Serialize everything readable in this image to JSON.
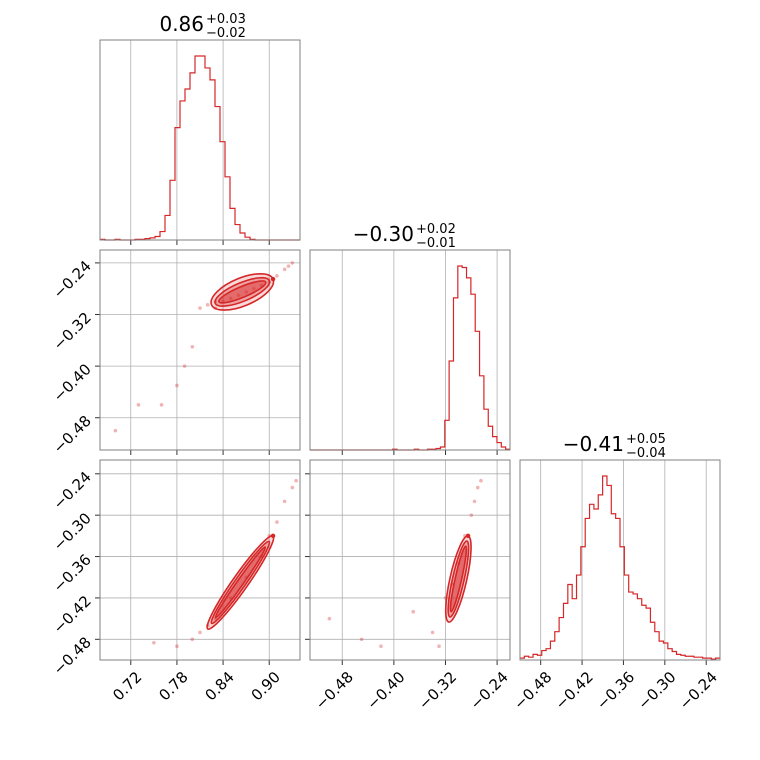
{
  "chart_data": {
    "type": "corner",
    "color": "#d62728",
    "parameters": [
      {
        "title": "0.86",
        "err_plus": "+0.03",
        "err_minus": "−0.02",
        "range": [
          0.68,
          0.94
        ],
        "ticks": [
          0.72,
          0.78,
          0.84,
          0.9
        ],
        "tick_labels": [
          "0.72",
          "0.78",
          "0.84",
          "0.90"
        ]
      },
      {
        "title": "−0.30",
        "err_plus": "+0.02",
        "err_minus": "−0.01",
        "range": [
          -0.53,
          -0.22
        ],
        "ticks": [
          -0.48,
          -0.4,
          -0.32,
          -0.24
        ],
        "tick_labels": [
          "−0.48",
          "−0.40",
          "−0.32",
          "−0.24"
        ]
      },
      {
        "title": "−0.41",
        "err_plus": "+0.05",
        "err_minus": "−0.04",
        "range": [
          -0.51,
          -0.22
        ],
        "ticks": [
          -0.48,
          -0.42,
          -0.36,
          -0.3,
          -0.24
        ],
        "tick_labels": [
          "−0.48",
          "−0.42",
          "−0.36",
          "−0.30",
          "−0.24"
        ]
      }
    ],
    "histograms": [
      {
        "param": 0,
        "bins_edges": [
          0.68,
          0.94
        ],
        "counts": [
          1,
          0,
          0,
          1,
          0,
          0,
          0,
          1,
          1,
          2,
          3,
          5,
          12,
          35,
          85,
          160,
          198,
          215,
          238,
          262,
          262,
          245,
          228,
          190,
          140,
          90,
          45,
          22,
          10,
          4,
          1,
          0,
          0,
          0,
          0,
          0,
          0,
          0,
          0,
          0
        ]
      },
      {
        "param": 1,
        "bins_edges": [
          -0.53,
          -0.22
        ],
        "counts": [
          0,
          0,
          0,
          0,
          0,
          0,
          0,
          0,
          0,
          0,
          0,
          0,
          0,
          0,
          0,
          0,
          0,
          0,
          0,
          1,
          0,
          0,
          0,
          0,
          1,
          0,
          0,
          1,
          1,
          2,
          4,
          40,
          120,
          205,
          248,
          246,
          232,
          210,
          160,
          100,
          55,
          32,
          18,
          10,
          4,
          1
        ]
      },
      {
        "param": 2,
        "bins_edges": [
          -0.51,
          -0.22
        ],
        "counts": [
          2,
          4,
          3,
          6,
          5,
          10,
          12,
          20,
          30,
          45,
          60,
          80,
          65,
          90,
          120,
          150,
          165,
          160,
          175,
          195,
          185,
          155,
          150,
          120,
          90,
          72,
          70,
          65,
          58,
          55,
          40,
          30,
          20,
          18,
          12,
          9,
          6,
          5,
          4,
          4,
          3,
          3,
          2,
          2,
          1,
          2
        ]
      }
    ],
    "pairs": [
      {
        "x_param": 0,
        "y_param": 1,
        "samples": [
          [
            0.7,
            -0.5
          ],
          [
            0.73,
            -0.46
          ],
          [
            0.76,
            -0.46
          ],
          [
            0.78,
            -0.43
          ],
          [
            0.79,
            -0.4
          ],
          [
            0.8,
            -0.37
          ],
          [
            0.81,
            -0.31
          ],
          [
            0.82,
            -0.305
          ],
          [
            0.83,
            -0.31
          ],
          [
            0.83,
            -0.3
          ],
          [
            0.84,
            -0.3
          ],
          [
            0.85,
            -0.295
          ],
          [
            0.86,
            -0.29
          ],
          [
            0.87,
            -0.285
          ],
          [
            0.88,
            -0.28
          ],
          [
            0.89,
            -0.275
          ],
          [
            0.9,
            -0.27
          ],
          [
            0.91,
            -0.26
          ],
          [
            0.92,
            -0.25
          ],
          [
            0.925,
            -0.245
          ],
          [
            0.93,
            -0.24
          ]
        ],
        "contour_axis": {
          "start": [
            0.825,
            -0.305
          ],
          "end": [
            0.905,
            -0.265
          ],
          "widths": [
            0.007,
            0.012,
            0.018
          ]
        }
      },
      {
        "x_param": 0,
        "y_param": 2,
        "samples": [
          [
            0.75,
            -0.485
          ],
          [
            0.78,
            -0.49
          ],
          [
            0.8,
            -0.48
          ],
          [
            0.81,
            -0.47
          ],
          [
            0.82,
            -0.46
          ],
          [
            0.83,
            -0.45
          ],
          [
            0.85,
            -0.42
          ],
          [
            0.87,
            -0.39
          ],
          [
            0.89,
            -0.36
          ],
          [
            0.9,
            -0.33
          ],
          [
            0.91,
            -0.31
          ],
          [
            0.92,
            -0.28
          ],
          [
            0.93,
            -0.26
          ],
          [
            0.935,
            -0.25
          ]
        ],
        "contour_axis": {
          "start": [
            0.82,
            -0.465
          ],
          "end": [
            0.905,
            -0.33
          ],
          "widths": [
            0.004,
            0.007,
            0.01
          ]
        }
      },
      {
        "x_param": 1,
        "y_param": 2,
        "samples": [
          [
            -0.5,
            -0.45
          ],
          [
            -0.45,
            -0.48
          ],
          [
            -0.42,
            -0.49
          ],
          [
            -0.37,
            -0.44
          ],
          [
            -0.34,
            -0.47
          ],
          [
            -0.33,
            -0.49
          ],
          [
            -0.32,
            -0.42
          ],
          [
            -0.31,
            -0.4
          ],
          [
            -0.3,
            -0.37
          ],
          [
            -0.29,
            -0.33
          ],
          [
            -0.28,
            -0.3
          ],
          [
            -0.275,
            -0.28
          ],
          [
            -0.27,
            -0.26
          ],
          [
            -0.265,
            -0.25
          ]
        ],
        "contour_axis": {
          "start": [
            -0.315,
            -0.455
          ],
          "end": [
            -0.285,
            -0.33
          ],
          "widths": [
            0.005,
            0.009,
            0.013
          ]
        }
      }
    ],
    "grid": true
  }
}
